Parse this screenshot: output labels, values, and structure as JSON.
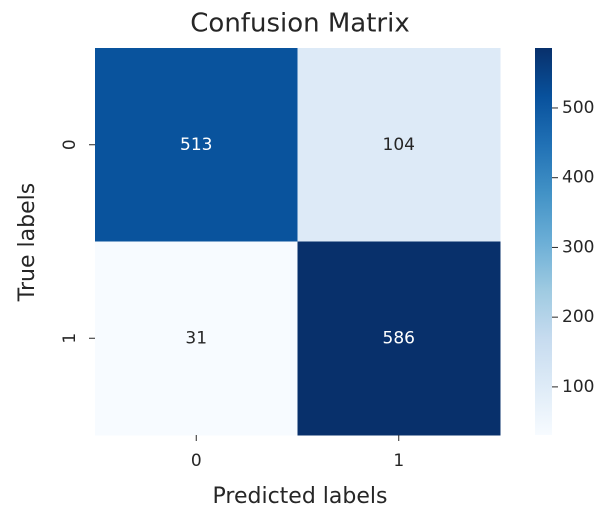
{
  "chart_data": {
    "type": "heatmap",
    "title": "Confusion Matrix",
    "x_label": "Predicted labels",
    "y_label": "True labels",
    "x_categories": [
      "0",
      "1"
    ],
    "y_categories": [
      "0",
      "1"
    ],
    "values": [
      [
        513,
        104
      ],
      [
        31,
        586
      ]
    ],
    "colormap": "Blues",
    "clim": [
      31,
      586
    ],
    "cticks": [
      100,
      200,
      300,
      400,
      500
    ]
  }
}
